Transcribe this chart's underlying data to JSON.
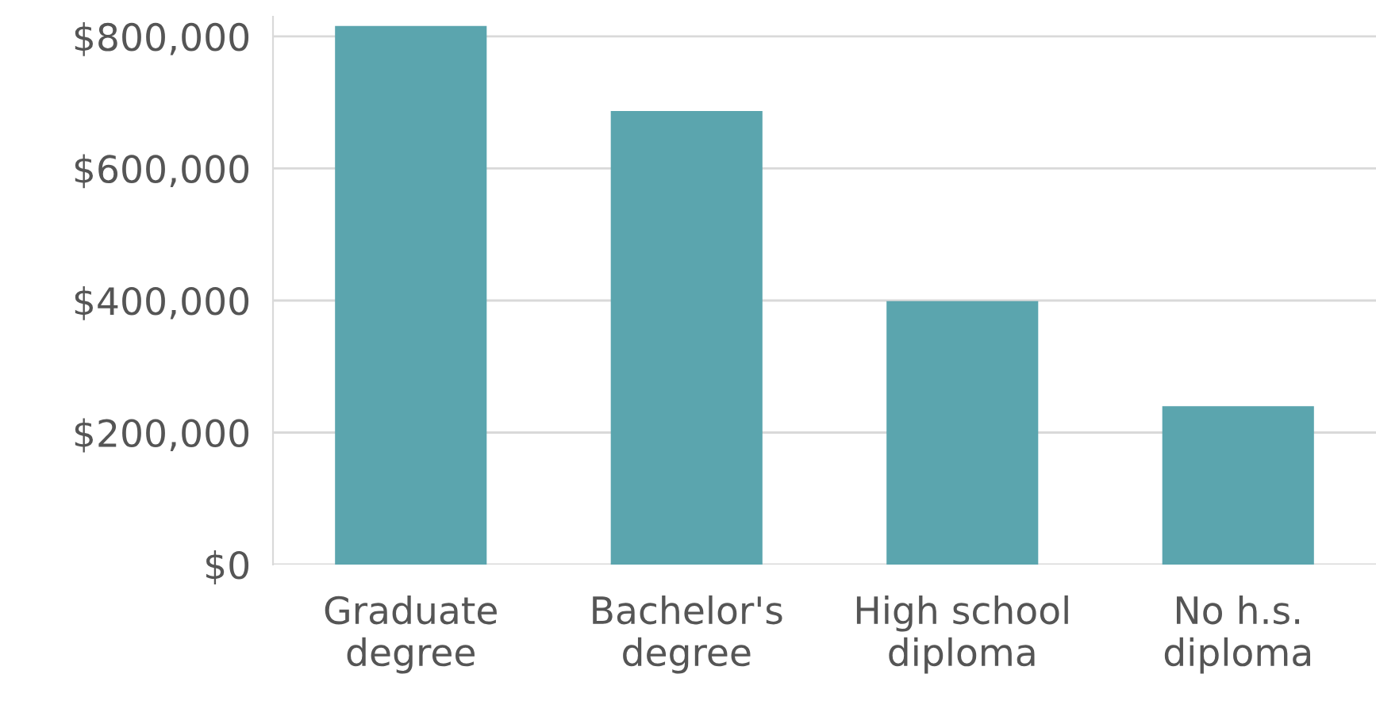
{
  "chart_data": {
    "type": "bar",
    "categories": [
      "Graduate\ndegree",
      "Bachelor's\ndegree",
      "High school\ndiploma",
      "No h.s.\ndiploma"
    ],
    "values": [
      816000,
      687000,
      399000,
      240000
    ],
    "color": "#5ba5ae",
    "ylim": [
      0,
      830000
    ],
    "yticks": [
      {
        "value": 0,
        "label": "$0"
      },
      {
        "value": 200000,
        "label": "$200,000"
      },
      {
        "value": 400000,
        "label": "$400,000"
      },
      {
        "value": 600000,
        "label": "$600,000"
      },
      {
        "value": 800000,
        "label": "$800,000"
      }
    ],
    "grid": "y"
  }
}
